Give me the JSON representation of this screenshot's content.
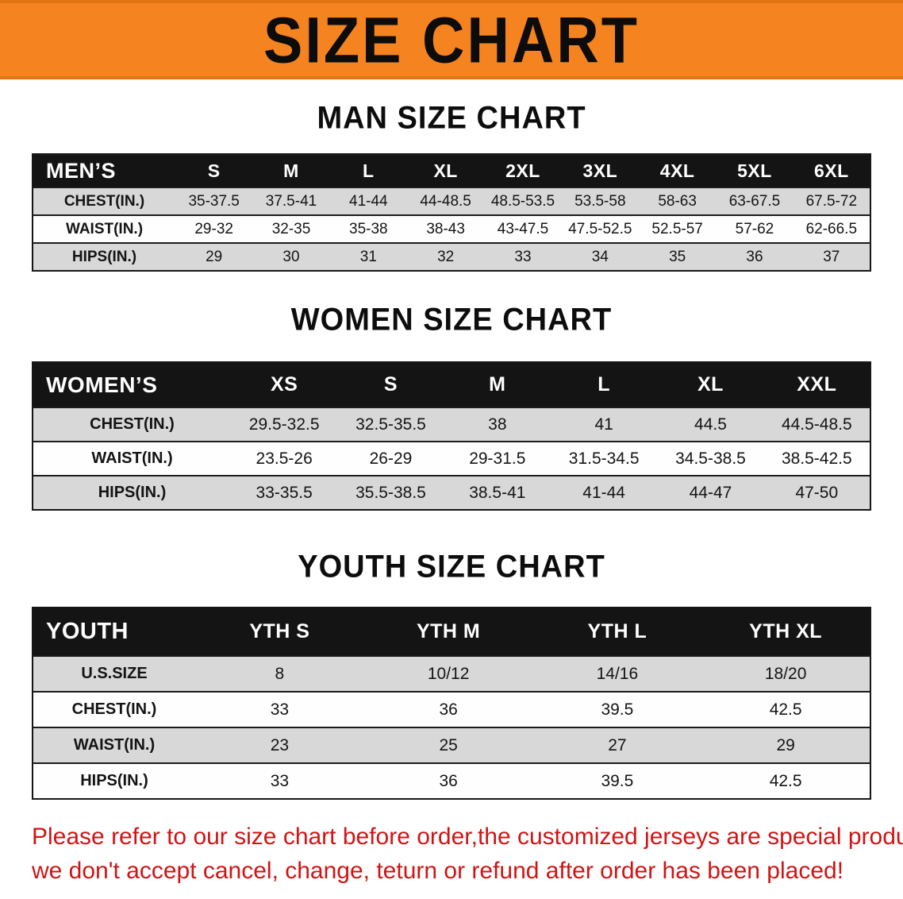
{
  "banner": {
    "title": "SIZE CHART"
  },
  "sections": {
    "men": {
      "heading": "MAN SIZE CHART"
    },
    "women": {
      "heading": "WOMEN SIZE CHART"
    },
    "youth": {
      "heading": "YOUTH SIZE CHART"
    }
  },
  "tables": {
    "men": {
      "header": [
        "MEN’S",
        "S",
        "M",
        "L",
        "XL",
        "2XL",
        "3XL",
        "4XL",
        "5XL",
        "6XL"
      ],
      "rows": [
        [
          "CHEST(IN.)",
          "35-37.5",
          "37.5-41",
          "41-44",
          "44-48.5",
          "48.5-53.5",
          "53.5-58",
          "58-63",
          "63-67.5",
          "67.5-72"
        ],
        [
          "WAIST(IN.)",
          "29-32",
          "32-35",
          "35-38",
          "38-43",
          "43-47.5",
          "47.5-52.5",
          "52.5-57",
          "57-62",
          "62-66.5"
        ],
        [
          "HIPS(IN.)",
          "29",
          "30",
          "31",
          "32",
          "33",
          "34",
          "35",
          "36",
          "37"
        ]
      ]
    },
    "women": {
      "header": [
        "WOMEN’S",
        "XS",
        "S",
        "M",
        "L",
        "XL",
        "XXL"
      ],
      "rows": [
        [
          "CHEST(IN.)",
          "29.5-32.5",
          "32.5-35.5",
          "38",
          "41",
          "44.5",
          "44.5-48.5"
        ],
        [
          "WAIST(IN.)",
          "23.5-26",
          "26-29",
          "29-31.5",
          "31.5-34.5",
          "34.5-38.5",
          "38.5-42.5"
        ],
        [
          "HIPS(IN.)",
          "33-35.5",
          "35.5-38.5",
          "38.5-41",
          "41-44",
          "44-47",
          "47-50"
        ]
      ]
    },
    "youth": {
      "header": [
        "YOUTH",
        "YTH S",
        "YTH M",
        "YTH L",
        "YTH XL"
      ],
      "rows": [
        [
          "U.S.SIZE",
          "8",
          "10/12",
          "14/16",
          "18/20"
        ],
        [
          "CHEST(IN.)",
          "33",
          "36",
          "39.5",
          "42.5"
        ],
        [
          "WAIST(IN.)",
          "23",
          "25",
          "27",
          "29"
        ],
        [
          "HIPS(IN.)",
          "33",
          "36",
          "39.5",
          "42.5"
        ]
      ]
    }
  },
  "footer": {
    "line1": "Please refer to our size chart before order,the customized jerseys are special products,",
    "line2": "we don't accept cancel, change, teturn or refund after order has been placed!"
  },
  "colors": {
    "banner_orange": "#f5831f",
    "table_header_black": "#141414",
    "row_gray": "#d8d8d8",
    "note_red": "#d01414"
  }
}
